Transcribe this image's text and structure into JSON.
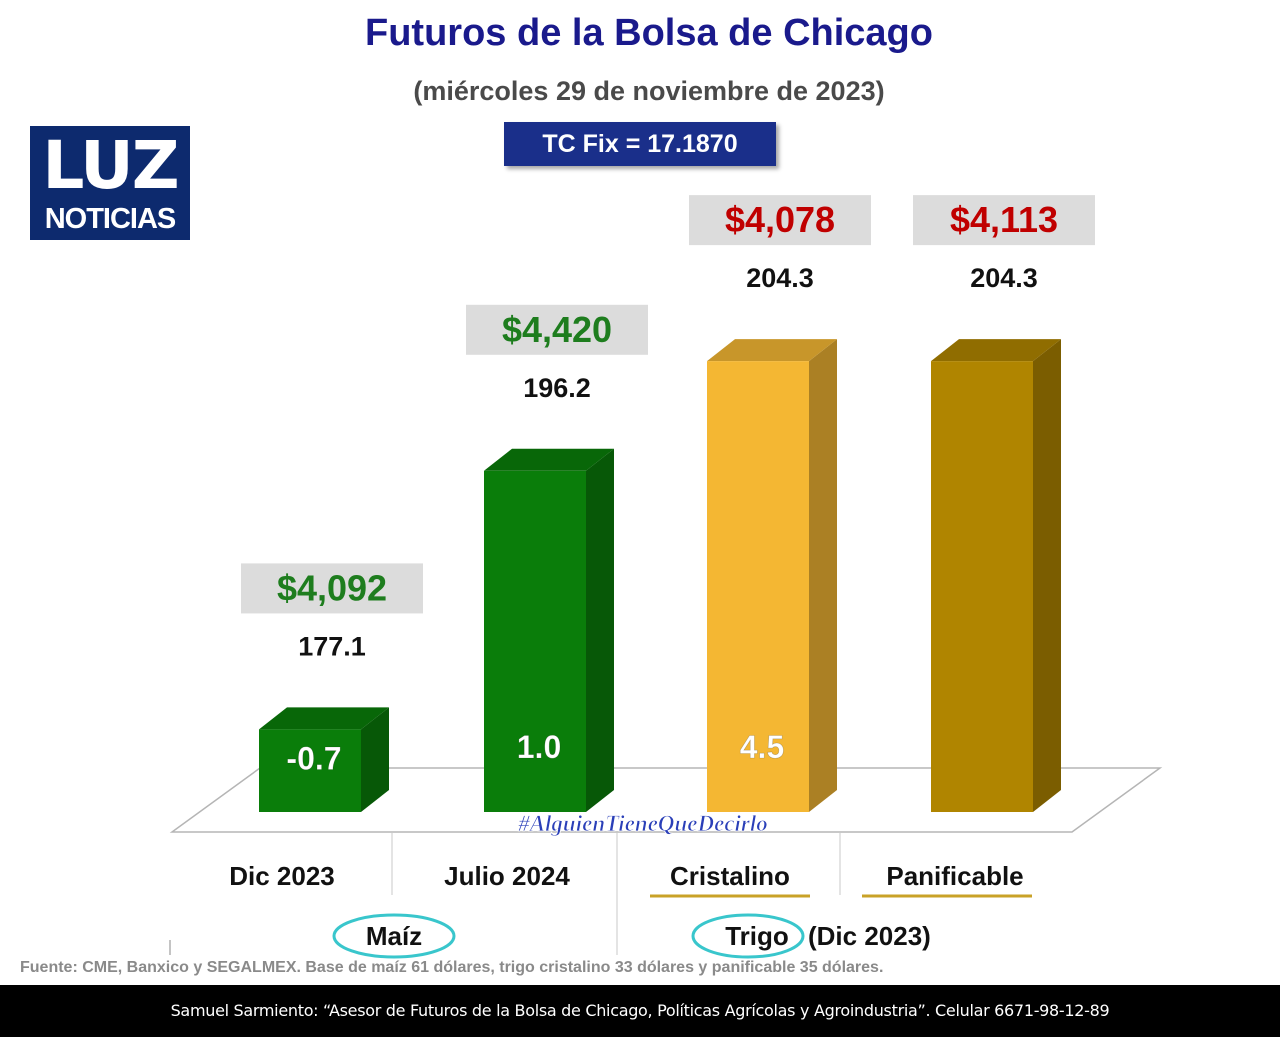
{
  "header": {
    "title": "Futuros de la Bolsa de Chicago",
    "subtitle": "(miércoles 29 de noviembre de 2023)",
    "tc_fix": "TC Fix = 17.1870"
  },
  "logo": {
    "line1": "LUZ",
    "line2": "NOTICIAS"
  },
  "chart_data": {
    "type": "bar",
    "categories": [
      "Dic 2023",
      "Julio 2024",
      "Cristalino",
      "Panificable"
    ],
    "values": [
      177.1,
      196.2,
      204.3,
      204.3
    ],
    "value_labels": [
      "177.1",
      "196.2",
      "204.3",
      "204.3"
    ],
    "price_labels": [
      "$4,092",
      "$4,420",
      "$4,078",
      "$4,113"
    ],
    "change_labels": [
      "-0.7",
      "1.0",
      "4.5",
      ""
    ],
    "groups": [
      {
        "label": "Maíz",
        "suffix": ""
      },
      {
        "label": "Trigo",
        "suffix": "(Dic 2023)"
      }
    ],
    "watermark": "#AlguienTieneQueDecirlo",
    "colors": {
      "maiz": "#0a7d0a",
      "cristalino": "#f4b733",
      "panificable": "#b08500",
      "price_green": "#1e7d1e",
      "price_red": "#c00000",
      "circle": "#39c6cc"
    }
  },
  "source": "Fuente: CME, Banxico y SEGALMEX. Base de maíz 61 dólares, trigo cristalino 33 dólares y panificable 35 dólares.",
  "footer": "Samuel Sarmiento: “Asesor de Futuros de la Bolsa de Chicago, Políticas Agrícolas y Agroindustria”. Celular 6671-98-12-89"
}
